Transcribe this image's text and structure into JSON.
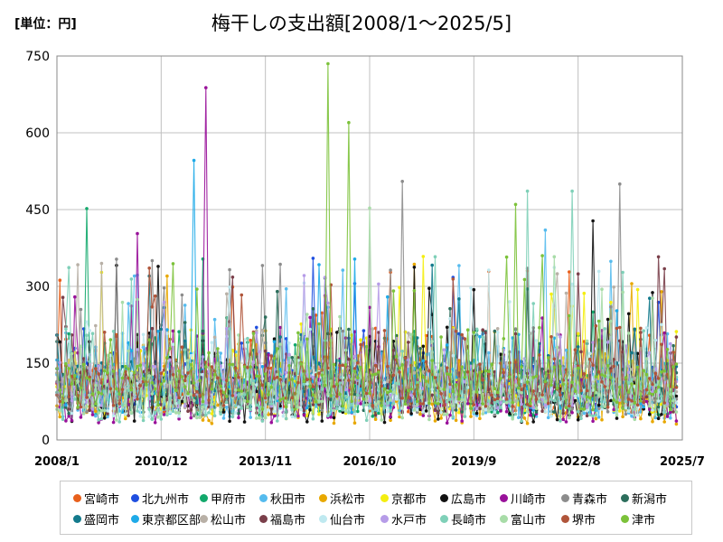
{
  "chart_data": {
    "type": "line",
    "title": "梅干しの支出額[2008/1～2025/5]",
    "unit_label": "[単位：円]",
    "ylim": [
      0,
      750
    ],
    "yticks": [
      0,
      150,
      300,
      450,
      600,
      750
    ],
    "xlim": [
      "2008-01",
      "2025-07"
    ],
    "xticks": [
      "2008/1",
      "2010/12",
      "2013/11",
      "2016/10",
      "2019/9",
      "2022/8",
      "2025/7"
    ],
    "grid": true,
    "legend_position": "bottom",
    "series": [
      {
        "name": "宮崎市",
        "color": "#e8601c"
      },
      {
        "name": "北九州市",
        "color": "#1f4fe0"
      },
      {
        "name": "甲府市",
        "color": "#12a86b"
      },
      {
        "name": "秋田市",
        "color": "#55bbee"
      },
      {
        "name": "浜松市",
        "color": "#e8a800"
      },
      {
        "name": "京都市",
        "color": "#f4ee10"
      },
      {
        "name": "広島市",
        "color": "#111111"
      },
      {
        "name": "川崎市",
        "color": "#99119a"
      },
      {
        "name": "青森市",
        "color": "#8c8c8c"
      },
      {
        "name": "新潟市",
        "color": "#2c6e5c"
      },
      {
        "name": "盛岡市",
        "color": "#137a8c"
      },
      {
        "name": "東京都区部",
        "color": "#1eaae8"
      },
      {
        "name": "松山市",
        "color": "#b8b0a6"
      },
      {
        "name": "福島市",
        "color": "#7a3f4a"
      },
      {
        "name": "仙台市",
        "color": "#bfe9f0"
      },
      {
        "name": "水戸市",
        "color": "#b69ce8"
      },
      {
        "name": "長崎市",
        "color": "#7fd0b8"
      },
      {
        "name": "富山市",
        "color": "#a8dca8"
      },
      {
        "name": "堺市",
        "color": "#b0553a"
      },
      {
        "name": "津市",
        "color": "#7cc23a"
      }
    ],
    "peaks": [
      {
        "series": "津市",
        "date": "2015-08",
        "value": 735
      },
      {
        "series": "川崎市",
        "date": "2012-03",
        "value": 688
      },
      {
        "series": "津市",
        "date": "2016-03",
        "value": 620
      },
      {
        "series": "東京都区部",
        "date": "2011-11",
        "value": 546
      },
      {
        "series": "青森市",
        "date": "2017-09",
        "value": 505
      },
      {
        "series": "青森市",
        "date": "2023-10",
        "value": 500
      },
      {
        "series": "長崎市",
        "date": "2021-03",
        "value": 486
      },
      {
        "series": "長崎市",
        "date": "2022-06",
        "value": 486
      },
      {
        "series": "甲府市",
        "date": "2008-11",
        "value": 452
      },
      {
        "series": "津市",
        "date": "2020-11",
        "value": 460
      },
      {
        "series": "富山市",
        "date": "2016-10",
        "value": 453
      },
      {
        "series": "広島市",
        "date": "2023-01",
        "value": 428
      },
      {
        "series": "川崎市",
        "date": "2010-04",
        "value": 403
      },
      {
        "series": "秋田市",
        "date": "2021-09",
        "value": 410
      }
    ]
  }
}
